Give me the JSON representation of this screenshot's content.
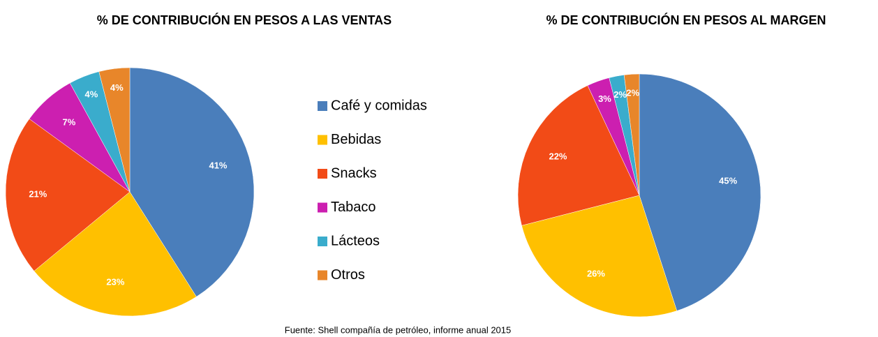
{
  "chart_data": [
    {
      "type": "pie",
      "title": "% DE CONTRIBUCIÓN EN PESOS A LAS VENTAS",
      "categories": [
        "Café y comidas",
        "Bebidas",
        "Snacks",
        "Tabaco",
        "Lácteos",
        "Otros"
      ],
      "values": [
        41,
        23,
        21,
        7,
        4,
        4
      ],
      "value_labels": [
        "41%",
        "23%",
        "21%",
        "7%",
        "4%",
        "4%"
      ],
      "colors": [
        "#4a7ebb",
        "#ffc000",
        "#f24b17",
        "#cc1fb0",
        "#3aaccc",
        "#e8862a"
      ]
    },
    {
      "type": "pie",
      "title": "% DE CONTRIBUCIÓN EN PESOS AL MARGEN",
      "categories": [
        "Café y comidas",
        "Bebidas",
        "Snacks",
        "Tabaco",
        "Lácteos",
        "Otros"
      ],
      "values": [
        45,
        26,
        22,
        3,
        2,
        2
      ],
      "value_labels": [
        "45%",
        "26%",
        "22%",
        "3%",
        "2%",
        "2%"
      ],
      "colors": [
        "#4a7ebb",
        "#ffc000",
        "#f24b17",
        "#cc1fb0",
        "#3aaccc",
        "#e8862a"
      ]
    }
  ],
  "source": "Fuente: Shell compañía de petróleo, informe anual 2015"
}
